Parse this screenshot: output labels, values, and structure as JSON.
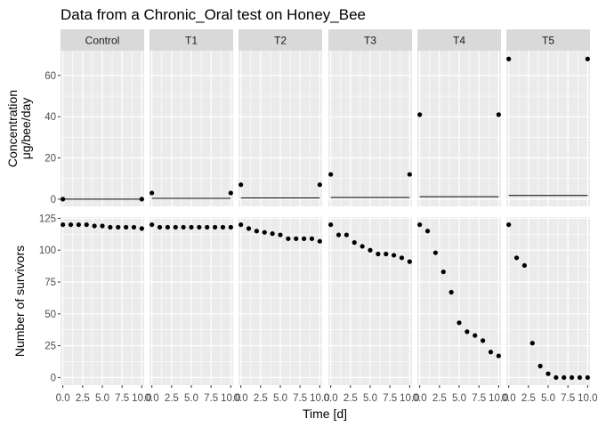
{
  "chart_data": {
    "type": "scatter",
    "title": "Data from a Chronic_Oral test on Honey_Bee",
    "xlabel": "Time [d]",
    "facets": [
      "Control",
      "T1",
      "T2",
      "T3",
      "T4",
      "T5"
    ],
    "x_ticks": [
      "0.0",
      "2.5",
      "5.0",
      "7.5",
      "10.0"
    ],
    "xlim": [
      -0.3,
      10.3
    ],
    "grid": true,
    "rows": [
      {
        "id": "concentration",
        "ylabel_lines": [
          "Concentration",
          "μg/bee/day"
        ],
        "ylim": [
          -3.5,
          72
        ],
        "y_ticks": [
          0,
          20,
          40,
          60
        ],
        "points": [
          {
            "facet": "Control",
            "x": [
              0,
              10
            ],
            "y": [
              0,
              0
            ]
          },
          {
            "facet": "T1",
            "x": [
              0,
              10
            ],
            "y": [
              3,
              3
            ]
          },
          {
            "facet": "T2",
            "x": [
              0,
              10
            ],
            "y": [
              7,
              7
            ]
          },
          {
            "facet": "T3",
            "x": [
              0,
              10
            ],
            "y": [
              12,
              12
            ]
          },
          {
            "facet": "T4",
            "x": [
              0,
              10
            ],
            "y": [
              41,
              41
            ]
          },
          {
            "facet": "T5",
            "x": [
              0,
              10
            ],
            "y": [
              68,
              68
            ]
          }
        ],
        "lines": [
          {
            "facet": "Control",
            "x": [
              0,
              10
            ],
            "y": [
              0,
              0
            ]
          },
          {
            "facet": "T1",
            "x": [
              0,
              10
            ],
            "y": [
              0.4,
              0.4
            ]
          },
          {
            "facet": "T2",
            "x": [
              0,
              10
            ],
            "y": [
              0.6,
              0.6
            ]
          },
          {
            "facet": "T3",
            "x": [
              0,
              10
            ],
            "y": [
              0.8,
              0.8
            ]
          },
          {
            "facet": "T4",
            "x": [
              0,
              10
            ],
            "y": [
              1.2,
              1.2
            ]
          },
          {
            "facet": "T5",
            "x": [
              0,
              10
            ],
            "y": [
              1.8,
              1.8
            ]
          }
        ]
      },
      {
        "id": "survivors",
        "ylabel_lines": [
          "Number of survivors"
        ],
        "ylim": [
          -6,
          126
        ],
        "y_ticks": [
          0,
          25,
          50,
          75,
          100,
          125
        ],
        "points": [
          {
            "facet": "Control",
            "x": [
              0,
              1,
              2,
              3,
              4,
              5,
              6,
              7,
              8,
              9,
              10
            ],
            "y": [
              120,
              120,
              120,
              120,
              119,
              119,
              118,
              118,
              118,
              118,
              117
            ]
          },
          {
            "facet": "T1",
            "x": [
              0,
              1,
              2,
              3,
              4,
              5,
              6,
              7,
              8,
              9,
              10
            ],
            "y": [
              120,
              118,
              118,
              118,
              118,
              118,
              118,
              118,
              118,
              118,
              118
            ]
          },
          {
            "facet": "T2",
            "x": [
              0,
              1,
              2,
              3,
              4,
              5,
              6,
              7,
              8,
              9,
              10
            ],
            "y": [
              120,
              117,
              115,
              114,
              113,
              112,
              109,
              109,
              109,
              109,
              107
            ]
          },
          {
            "facet": "T3",
            "x": [
              0,
              1,
              2,
              3,
              4,
              5,
              6,
              7,
              8,
              9,
              10
            ],
            "y": [
              120,
              112,
              112,
              106,
              103,
              100,
              97,
              97,
              96,
              94,
              91
            ]
          },
          {
            "facet": "T4",
            "x": [
              0,
              1,
              2,
              3,
              4,
              5,
              6,
              7,
              8,
              9,
              10
            ],
            "y": [
              120,
              115,
              98,
              83,
              67,
              43,
              36,
              33,
              29,
              20,
              17
            ]
          },
          {
            "facet": "T5",
            "x": [
              0,
              1,
              2,
              3,
              4,
              5,
              6,
              7,
              8,
              9,
              10
            ],
            "y": [
              120,
              94,
              88,
              27,
              9,
              3,
              0,
              0,
              0,
              0,
              0
            ]
          }
        ],
        "lines": []
      }
    ]
  }
}
